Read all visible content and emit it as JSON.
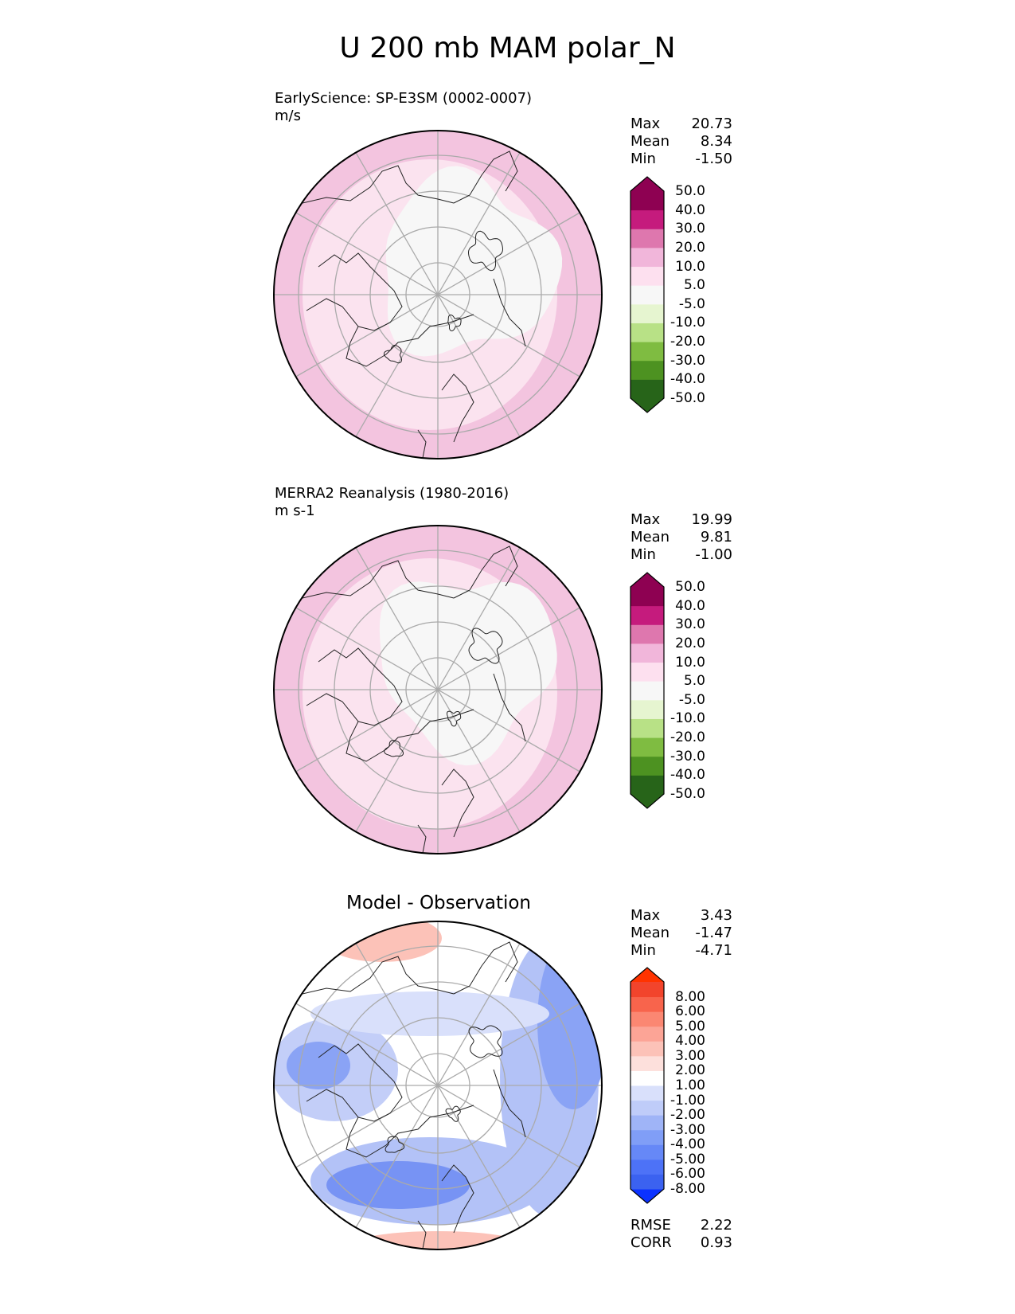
{
  "title": "U 200 mb MAM polar_N",
  "panels": [
    {
      "id": "test",
      "label_line1": "EarlyScience: SP-E3SM (0002-0007)",
      "label_line2": "m/s",
      "stats": [
        {
          "name": "Max",
          "value": "20.73"
        },
        {
          "name": "Mean",
          "value": "8.34"
        },
        {
          "name": "Min",
          "value": "-1.50"
        }
      ],
      "colorbar": {
        "colors": [
          "#276419",
          "#4d9221",
          "#7fbc41",
          "#b8e186",
          "#e6f5d0",
          "#f7f7f7",
          "#fde0ef",
          "#f1b6da",
          "#de77ae",
          "#c51b7d",
          "#8e0152"
        ],
        "under_color": "#276419",
        "over_color": "#8e0152",
        "labels": [
          "-50.0",
          "-40.0",
          "-30.0",
          "-20.0",
          "-10.0",
          "-5.0",
          "5.0",
          "10.0",
          "20.0",
          "30.0",
          "40.0",
          "50.0"
        ]
      },
      "map_colors": {
        "outer": "#f3c4df",
        "mid": "#fbe3ef",
        "inner": "#f7f7f7"
      }
    },
    {
      "id": "ref",
      "label_line1": "MERRA2 Reanalysis (1980-2016)",
      "label_line2": "m s-1",
      "stats": [
        {
          "name": "Max",
          "value": "19.99"
        },
        {
          "name": "Mean",
          "value": "9.81"
        },
        {
          "name": "Min",
          "value": "-1.00"
        }
      ],
      "colorbar": {
        "colors": [
          "#276419",
          "#4d9221",
          "#7fbc41",
          "#b8e186",
          "#e6f5d0",
          "#f7f7f7",
          "#fde0ef",
          "#f1b6da",
          "#de77ae",
          "#c51b7d",
          "#8e0152"
        ],
        "under_color": "#276419",
        "over_color": "#8e0152",
        "labels": [
          "-50.0",
          "-40.0",
          "-30.0",
          "-20.0",
          "-10.0",
          "-5.0",
          "5.0",
          "10.0",
          "20.0",
          "30.0",
          "40.0",
          "50.0"
        ]
      },
      "map_colors": {
        "outer": "#f3c4df",
        "mid": "#fbe3ef",
        "inner": "#f7f7f7"
      }
    },
    {
      "id": "diff",
      "title": "Model - Observation",
      "stats": [
        {
          "name": "Max",
          "value": "3.43"
        },
        {
          "name": "Mean",
          "value": "-1.47"
        },
        {
          "name": "Min",
          "value": "-4.71"
        }
      ],
      "colorbar": {
        "colors": [
          "#3b62f0",
          "#4d72f7",
          "#6688f7",
          "#809ef7",
          "#9fb4f7",
          "#bfccf9",
          "#d9e0fb",
          "#ffffff",
          "#fde0dc",
          "#fcc2b8",
          "#fca496",
          "#fb8772",
          "#f8644c",
          "#f2442c"
        ],
        "under_color": "#0b32ff",
        "over_color": "#ff3300",
        "labels": [
          "-8.00",
          "-6.00",
          "-5.00",
          "-4.00",
          "-3.00",
          "-2.00",
          "-1.00",
          "1.00",
          "2.00",
          "3.00",
          "4.00",
          "5.00",
          "6.00",
          "8.00"
        ]
      },
      "extra_stats": [
        {
          "name": "RMSE",
          "value": "2.22"
        },
        {
          "name": "CORR",
          "value": "0.93"
        }
      ]
    }
  ]
}
